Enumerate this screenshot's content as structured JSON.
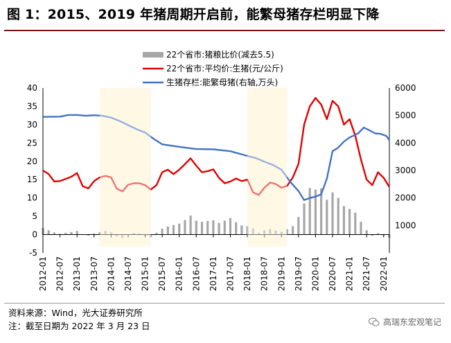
{
  "title": "图 1：2015、2019 年猪周期开启前，能繁母猪存栏明显下降",
  "footer": {
    "source": "资料来源：Wind，光大证券研究所",
    "note": "注：截至日期为 2022 年 3 月 23 日",
    "watermark": "高瑞东宏观笔记",
    "watermark_icon": "wechat-icon"
  },
  "chart_data": {
    "type": "line",
    "grid": false,
    "legend_placement": "top-center",
    "left_axis": {
      "ylim": [
        -5,
        40
      ],
      "ticks": [
        -5,
        0,
        5,
        10,
        15,
        20,
        25,
        30,
        35,
        40
      ]
    },
    "right_axis": {
      "ylim": [
        0,
        6000
      ],
      "ticks": [
        0,
        1000,
        2000,
        3000,
        4000,
        5000,
        6000
      ],
      "visible_labels": [
        1000,
        2000,
        3000,
        4000,
        5000,
        6000
      ]
    },
    "x_ticks": [
      "2012-01",
      "2012-07",
      "2013-01",
      "2013-07",
      "2014-01",
      "2014-07",
      "2015-01",
      "2015-07",
      "2016-01",
      "2016-07",
      "2017-01",
      "2017-07",
      "2018-01",
      "2018-07",
      "2019-01",
      "2019-07",
      "2020-01",
      "2020-07",
      "2021-01",
      "2021-07",
      "2022-01"
    ],
    "x_range": [
      "2012-01",
      "2022-03"
    ],
    "highlight_periods": [
      {
        "start": "2013-09",
        "end": "2015-03"
      },
      {
        "start": "2018-01",
        "end": "2019-03"
      }
    ],
    "colors": {
      "ratio": "#a6a6a6",
      "price": "#e00000",
      "sow": "#4472c4",
      "highlight": "#fdf3d0",
      "overlay": "#ffffff"
    },
    "series": [
      {
        "name": "22个省市:猪粮比价(减去5.5)",
        "type": "bar",
        "axis": "left",
        "points": [
          [
            "2012-01",
            1.8
          ],
          [
            "2012-03",
            1.2
          ],
          [
            "2012-05",
            0.6
          ],
          [
            "2012-07",
            0.2
          ],
          [
            "2012-09",
            0.5
          ],
          [
            "2012-11",
            0.7
          ],
          [
            "2013-01",
            1.0
          ],
          [
            "2013-03",
            0.1
          ],
          [
            "2013-05",
            -0.3
          ],
          [
            "2013-07",
            0.3
          ],
          [
            "2013-09",
            0.7
          ],
          [
            "2013-11",
            1.0
          ],
          [
            "2014-01",
            0.6
          ],
          [
            "2014-03",
            -0.5
          ],
          [
            "2014-05",
            -0.9
          ],
          [
            "2014-07",
            -0.1
          ],
          [
            "2014-09",
            0.4
          ],
          [
            "2014-11",
            0.3
          ],
          [
            "2015-01",
            -0.2
          ],
          [
            "2015-03",
            -0.7
          ],
          [
            "2015-05",
            0.5
          ],
          [
            "2015-07",
            1.6
          ],
          [
            "2015-09",
            2.2
          ],
          [
            "2015-11",
            2.6
          ],
          [
            "2016-01",
            3.0
          ],
          [
            "2016-03",
            4.0
          ],
          [
            "2016-05",
            5.2
          ],
          [
            "2016-07",
            3.8
          ],
          [
            "2016-09",
            3.5
          ],
          [
            "2016-11",
            3.7
          ],
          [
            "2017-01",
            3.9
          ],
          [
            "2017-03",
            3.2
          ],
          [
            "2017-05",
            3.8
          ],
          [
            "2017-07",
            4.5
          ],
          [
            "2017-09",
            3.4
          ],
          [
            "2017-11",
            2.5
          ],
          [
            "2018-01",
            2.3
          ],
          [
            "2018-03",
            1.6
          ],
          [
            "2018-05",
            0.5
          ],
          [
            "2018-07",
            1.2
          ],
          [
            "2018-09",
            1.5
          ],
          [
            "2018-11",
            1.1
          ],
          [
            "2019-01",
            0.8
          ],
          [
            "2019-03",
            1.5
          ],
          [
            "2019-05",
            2.3
          ],
          [
            "2019-07",
            4.8
          ],
          [
            "2019-09",
            8.5
          ],
          [
            "2019-11",
            12.7
          ],
          [
            "2020-01",
            12.3
          ],
          [
            "2020-03",
            12.6
          ],
          [
            "2020-05",
            9.5
          ],
          [
            "2020-07",
            11.5
          ],
          [
            "2020-09",
            10.0
          ],
          [
            "2020-11",
            7.8
          ],
          [
            "2021-01",
            7.0
          ],
          [
            "2021-03",
            6.0
          ],
          [
            "2021-05",
            3.5
          ],
          [
            "2021-07",
            1.2
          ],
          [
            "2021-09",
            -0.3
          ],
          [
            "2021-11",
            0.4
          ],
          [
            "2022-01",
            -0.3
          ],
          [
            "2022-03",
            -0.8
          ]
        ]
      },
      {
        "name": "22个省市:平均价:生猪(元/公斤)",
        "type": "line",
        "axis": "left",
        "points": [
          [
            "2012-01",
            17.5
          ],
          [
            "2012-03",
            16.5
          ],
          [
            "2012-05",
            14.5
          ],
          [
            "2012-07",
            14.6
          ],
          [
            "2012-09",
            15.2
          ],
          [
            "2012-11",
            15.8
          ],
          [
            "2013-01",
            16.8
          ],
          [
            "2013-03",
            13.2
          ],
          [
            "2013-05",
            12.6
          ],
          [
            "2013-07",
            14.6
          ],
          [
            "2013-09",
            15.6
          ],
          [
            "2013-11",
            16.0
          ],
          [
            "2014-01",
            15.6
          ],
          [
            "2014-03",
            12.5
          ],
          [
            "2014-05",
            11.8
          ],
          [
            "2014-07",
            13.6
          ],
          [
            "2014-09",
            14.0
          ],
          [
            "2014-11",
            14.0
          ],
          [
            "2015-01",
            13.5
          ],
          [
            "2015-03",
            12.3
          ],
          [
            "2015-05",
            13.5
          ],
          [
            "2015-07",
            17.0
          ],
          [
            "2015-09",
            17.7
          ],
          [
            "2015-11",
            16.5
          ],
          [
            "2016-01",
            17.7
          ],
          [
            "2016-03",
            19.2
          ],
          [
            "2016-05",
            20.8
          ],
          [
            "2016-07",
            18.8
          ],
          [
            "2016-09",
            17.0
          ],
          [
            "2016-11",
            17.3
          ],
          [
            "2017-01",
            17.8
          ],
          [
            "2017-03",
            15.5
          ],
          [
            "2017-05",
            14.0
          ],
          [
            "2017-07",
            14.5
          ],
          [
            "2017-09",
            15.3
          ],
          [
            "2017-11",
            14.6
          ],
          [
            "2018-01",
            15.0
          ],
          [
            "2018-03",
            11.5
          ],
          [
            "2018-05",
            10.8
          ],
          [
            "2018-07",
            12.8
          ],
          [
            "2018-09",
            14.2
          ],
          [
            "2018-11",
            13.8
          ],
          [
            "2019-01",
            12.8
          ],
          [
            "2019-03",
            13.3
          ],
          [
            "2019-05",
            15.6
          ],
          [
            "2019-07",
            19.3
          ],
          [
            "2019-09",
            30.0
          ],
          [
            "2019-11",
            35.0
          ],
          [
            "2020-01",
            37.3
          ],
          [
            "2020-03",
            35.5
          ],
          [
            "2020-05",
            31.5
          ],
          [
            "2020-07",
            36.5
          ],
          [
            "2020-09",
            35.0
          ],
          [
            "2020-11",
            30.0
          ],
          [
            "2021-01",
            31.5
          ],
          [
            "2021-03",
            27.0
          ],
          [
            "2021-05",
            20.5
          ],
          [
            "2021-07",
            15.0
          ],
          [
            "2021-09",
            13.5
          ],
          [
            "2021-11",
            17.0
          ],
          [
            "2022-01",
            15.5
          ],
          [
            "2022-03",
            13.0
          ]
        ]
      },
      {
        "name": "生猪存栏:能繁母猪(右轴,万头)",
        "type": "line",
        "axis": "right",
        "points": [
          [
            "2012-01",
            4950
          ],
          [
            "2012-07",
            4960
          ],
          [
            "2012-10",
            5020
          ],
          [
            "2013-01",
            5020
          ],
          [
            "2013-04",
            4990
          ],
          [
            "2013-07",
            5010
          ],
          [
            "2013-10",
            4990
          ],
          [
            "2014-01",
            4920
          ],
          [
            "2014-04",
            4800
          ],
          [
            "2014-07",
            4650
          ],
          [
            "2014-10",
            4500
          ],
          [
            "2015-01",
            4380
          ],
          [
            "2015-04",
            4150
          ],
          [
            "2015-07",
            3950
          ],
          [
            "2016-01",
            3860
          ],
          [
            "2016-07",
            3780
          ],
          [
            "2017-01",
            3770
          ],
          [
            "2017-07",
            3700
          ],
          [
            "2018-01",
            3530
          ],
          [
            "2018-04",
            3450
          ],
          [
            "2018-07",
            3320
          ],
          [
            "2018-10",
            3200
          ],
          [
            "2019-01",
            3030
          ],
          [
            "2019-04",
            2600
          ],
          [
            "2019-07",
            2250
          ],
          [
            "2019-09",
            1920
          ],
          [
            "2019-11",
            2000
          ],
          [
            "2020-01",
            2050
          ],
          [
            "2020-03",
            2130
          ],
          [
            "2020-05",
            2700
          ],
          [
            "2020-07",
            3700
          ],
          [
            "2020-09",
            3830
          ],
          [
            "2020-11",
            4050
          ],
          [
            "2021-01",
            4200
          ],
          [
            "2021-04",
            4350
          ],
          [
            "2021-06",
            4560
          ],
          [
            "2021-08",
            4460
          ],
          [
            "2021-10",
            4350
          ],
          [
            "2021-12",
            4330
          ],
          [
            "2022-02",
            4250
          ],
          [
            "2022-03",
            4100
          ]
        ]
      }
    ]
  }
}
